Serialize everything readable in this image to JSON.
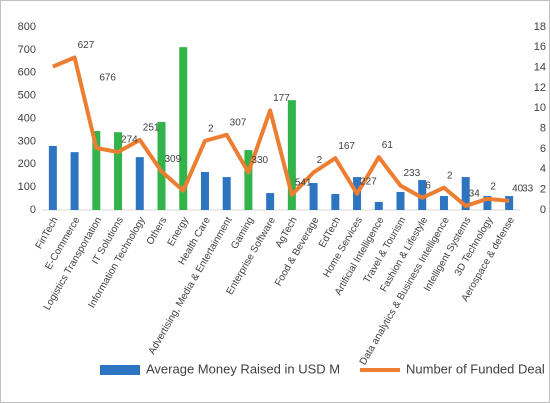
{
  "chart_data": {
    "type": "bar_line",
    "categories": [
      "FinTech",
      "E-Commerce",
      "Logistics Transportation",
      "IT Solutions",
      "Information Technology",
      "Others",
      "Energy",
      "Health Care",
      "Advertising, Media & Entertainment",
      "Gaming",
      "Enterprise Software",
      "AgTech",
      "Food & Beverage",
      "EdTech",
      "Home Services",
      "Artificial Intelligence",
      "Travel & Tourism",
      "Fashion & Lifestyle",
      "Data analytics & Business Intelligence",
      "Intelligent Systems",
      "3D Technology",
      "Aerospace & defense"
    ],
    "series": [
      {
        "name": "Average Money Raised in USD M",
        "type": "bar",
        "color": "#2e75c1",
        "colors": [
          "#2e75c1",
          "#2e75c1",
          "#33b44a",
          "#33b44a",
          "#2e75c1",
          "#33b44a",
          "#33b44a",
          "#2e75c1",
          "#2e75c1",
          "#33b44a",
          "#2e75c1",
          "#33b44a",
          "#2e75c1",
          "#2e75c1",
          "#2e75c1",
          "#2e75c1",
          "#2e75c1",
          "#2e75c1",
          "#2e75c1",
          "#2e75c1",
          "#2e75c1",
          "#2e75c1"
        ],
        "values": [
          280,
          253,
          345,
          340,
          231,
          385,
          712,
          166,
          144,
          262,
          74,
          480,
          118,
          70,
          144,
          35,
          79,
          131,
          61,
          144,
          61,
          61
        ]
      },
      {
        "name": "Number of Funded Deal",
        "type": "line",
        "axis": "y2",
        "color": "#ed7d31",
        "values": [
          14.1,
          15.0,
          6.1,
          5.7,
          6.9,
          3.8,
          1.9,
          6.8,
          7.4,
          3.7,
          9.8,
          1.5,
          3.7,
          5.1,
          1.6,
          5.2,
          2.4,
          1.2,
          2.2,
          0.4,
          1.1,
          0.9
        ]
      }
    ],
    "annotations": [
      {
        "text": "627",
        "category": "E-Commerce"
      },
      {
        "text": "676",
        "category": "Logistics Transportation"
      },
      {
        "text": "274",
        "category": "IT Solutions"
      },
      {
        "text": "251",
        "category": "Information Technology"
      },
      {
        "text": "309",
        "category": "Others"
      },
      {
        "text": "2",
        "category": "Health Care"
      },
      {
        "text": "307",
        "category": "Advertising, Media & Entertainment"
      },
      {
        "text": "330",
        "category": "Gaming"
      },
      {
        "text": "177",
        "category": "Enterprise Software"
      },
      {
        "text": "541",
        "category": "AgTech"
      },
      {
        "text": "2",
        "category": "Food & Beverage"
      },
      {
        "text": "167",
        "category": "EdTech"
      },
      {
        "text": "227",
        "category": "Home Services"
      },
      {
        "text": "61",
        "category": "Artificial Intelligence"
      },
      {
        "text": "233",
        "category": "Travel & Tourism"
      },
      {
        "text": "6",
        "category": "Fashion & Lifestyle"
      },
      {
        "text": "2",
        "category": "Data analytics & Business Intelligence"
      },
      {
        "text": "34",
        "category": "Intelligent Systems"
      },
      {
        "text": "2",
        "category": "3D Technology"
      },
      {
        "text": "40",
        "category": "Aerospace & defense"
      },
      {
        "text": "33",
        "category": "Aerospace & defense"
      }
    ],
    "ylim": [
      0,
      800
    ],
    "yticks": [
      0,
      100,
      200,
      300,
      400,
      500,
      600,
      700,
      800
    ],
    "y2lim": [
      0,
      18
    ],
    "y2ticks": [
      0,
      2,
      4,
      6,
      8,
      10,
      12,
      14,
      16,
      18
    ],
    "legend": "bottom"
  }
}
